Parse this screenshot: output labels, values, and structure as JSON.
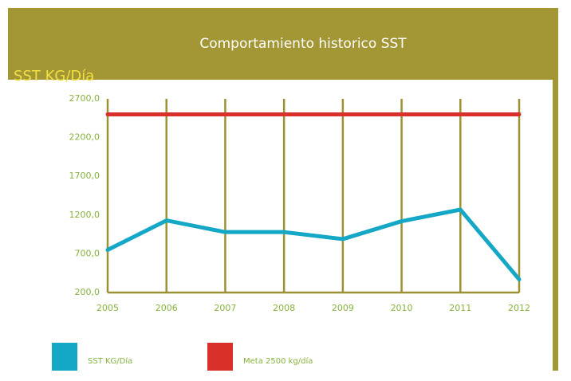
{
  "chart_data": {
    "type": "line",
    "title": "Comportamiento historico SST",
    "y_label": "SST KG/Día",
    "categories": [
      "2005",
      "2006",
      "2007",
      "2008",
      "2009",
      "2010",
      "2011",
      "2012"
    ],
    "series": [
      {
        "name": "SST KG/Día",
        "color": "#15a8c6",
        "values": [
          750,
          1130,
          980,
          980,
          890,
          1120,
          1270,
          370
        ]
      },
      {
        "name": "Meta 2500 kg/día",
        "color": "#d9302c",
        "values": [
          2500,
          2500,
          2500,
          2500,
          2500,
          2500,
          2500,
          2500
        ]
      }
    ],
    "ylim": [
      200,
      2700
    ],
    "yticks": [
      {
        "value": 200,
        "label": "200,0"
      },
      {
        "value": 700,
        "label": "700,0"
      },
      {
        "value": 1200,
        "label": "1200,0"
      },
      {
        "value": 1700,
        "label": "1700,0"
      },
      {
        "value": 2200,
        "label": "2200,0"
      },
      {
        "value": 2700,
        "label": "2700,0"
      }
    ],
    "grid": false
  }
}
